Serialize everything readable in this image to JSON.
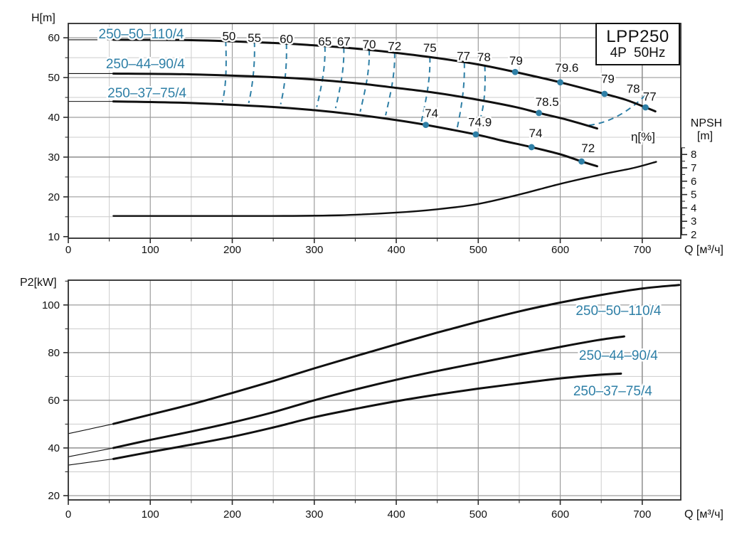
{
  "title_box": {
    "line1": "LPP250",
    "line2": "4P  50Hz"
  },
  "colors": {
    "accent": "#2e7fa6",
    "curve": "#101010",
    "grid_minor": "#cccccc",
    "grid_major": "#9d9d9d",
    "grid_emph": "#8a8a8a",
    "frame": "#2b2b2b",
    "text": "#111111"
  },
  "chart_data": [
    {
      "id": "head-flow-chart",
      "type": "line",
      "title": "",
      "ylabel": "H[m]",
      "xlabel": "Q [м³/ч]",
      "xlim": [
        0,
        747
      ],
      "ylim": [
        9.6,
        63.6
      ],
      "x_tick_labels": [
        0,
        100,
        200,
        300,
        400,
        500,
        600,
        700
      ],
      "x_minor_step": 50,
      "y_tick_labels": [
        10,
        20,
        30,
        40,
        50,
        60
      ],
      "y_minor_step": 5,
      "emphasis": {
        "x": 700,
        "y": 30
      },
      "series": [
        {
          "name": "250–50–110/4",
          "label_pos": [
            89,
            60.9
          ],
          "thin": [
            [
              0,
              59.5
            ],
            [
              55,
              59.5
            ]
          ],
          "points": [
            [
              55,
              59.5
            ],
            [
              150,
              59.4
            ],
            [
              250,
              58.7
            ],
            [
              300,
              58.1
            ],
            [
              350,
              57.3
            ],
            [
              400,
              56.2
            ],
            [
              450,
              54.9
            ],
            [
              500,
              53.3
            ],
            [
              545,
              51.4
            ],
            [
              600,
              48.8
            ],
            [
              654,
              45.9
            ],
            [
              680,
              44.4
            ],
            [
              704,
              42.5
            ],
            [
              716,
              41.5
            ]
          ]
        },
        {
          "name": "250–44–90/4",
          "label_pos": [
            94,
            53.4
          ],
          "thin": [
            [
              0,
              51.0
            ],
            [
              55,
              51.0
            ]
          ],
          "points": [
            [
              55,
              51.0
            ],
            [
              150,
              50.8
            ],
            [
              250,
              50.1
            ],
            [
              300,
              49.5
            ],
            [
              350,
              48.6
            ],
            [
              400,
              47.4
            ],
            [
              450,
              46.1
            ],
            [
              500,
              44.4
            ],
            [
              545,
              42.6
            ],
            [
              574,
              41.1
            ],
            [
              610,
              39.3
            ],
            [
              645,
              37.2
            ]
          ]
        },
        {
          "name": "250–37–75/4",
          "label_pos": [
            96,
            46.1
          ],
          "thin": [
            [
              0,
              44.0
            ],
            [
              55,
              44.0
            ]
          ],
          "points": [
            [
              55,
              44.0
            ],
            [
              150,
              43.6
            ],
            [
              250,
              42.6
            ],
            [
              300,
              41.8
            ],
            [
              350,
              40.7
            ],
            [
              400,
              39.3
            ],
            [
              436,
              38.1
            ],
            [
              497,
              35.7
            ],
            [
              530,
              34.1
            ],
            [
              565,
              32.5
            ],
            [
              600,
              30.7
            ],
            [
              626,
              28.9
            ],
            [
              645,
              27.7
            ]
          ]
        },
        {
          "name": "NPSH",
          "axis": "npsh",
          "points": [
            [
              55,
              3.4
            ],
            [
              150,
              3.4
            ],
            [
              250,
              3.4
            ],
            [
              330,
              3.45
            ],
            [
              400,
              3.65
            ],
            [
              450,
              3.9
            ],
            [
              500,
              4.3
            ],
            [
              550,
              5.0
            ],
            [
              600,
              5.8
            ],
            [
              650,
              6.5
            ],
            [
              690,
              7.0
            ],
            [
              717,
              7.45
            ]
          ]
        }
      ],
      "npsh_axis": {
        "title": "NPSH",
        "unit": "[m]",
        "ticks": [
          2,
          3,
          4,
          5,
          6,
          7,
          8
        ],
        "lim": [
          2,
          8.5
        ]
      },
      "eta_label": {
        "text": "η[%]",
        "pos": [
          701,
          35.2
        ]
      },
      "contours": [
        {
          "label": "50",
          "label_pos": [
            196,
            60.5
          ],
          "x1": 192,
          "y1": 59.3,
          "x2": 188,
          "y2": 43.9
        },
        {
          "label": "55",
          "label_pos": [
            227,
            60.0
          ],
          "x1": 227,
          "y1": 59.1,
          "x2": 220,
          "y2": 43.6
        },
        {
          "label": "60",
          "label_pos": [
            266,
            59.8
          ],
          "x1": 266,
          "y1": 58.6,
          "x2": 259,
          "y2": 43.3
        },
        {
          "label": "65",
          "label_pos": [
            313,
            59.1
          ],
          "x1": 313,
          "y1": 57.9,
          "x2": 303,
          "y2": 42.6
        },
        {
          "label": "67",
          "label_pos": [
            336,
            59.1
          ],
          "x1": 336,
          "y1": 57.6,
          "x2": 326,
          "y2": 42.3
        },
        {
          "label": "70",
          "label_pos": [
            367,
            58.4
          ],
          "x1": 367,
          "y1": 57.0,
          "x2": 356,
          "y2": 41.4
        },
        {
          "label": "72",
          "label_pos": [
            398,
            58.0
          ],
          "x1": 398,
          "y1": 56.3,
          "x2": 387,
          "y2": 40.5
        },
        {
          "label": "75",
          "label_pos": [
            441,
            57.5
          ],
          "x1": 441,
          "y1": 55.2,
          "x2": 430,
          "y2": 38.3
        },
        {
          "label": "77",
          "label_pos": [
            482,
            55.5
          ],
          "x1": 483,
          "y1": 53.8,
          "x2": 474,
          "y2": 37.0
        },
        {
          "label": "78",
          "label_pos": [
            507,
            55.2
          ],
          "x1": 508,
          "y1": 53.0,
          "x2": 503,
          "y2": 40.0
        },
        {
          "label": "",
          "label_pos": [
            0,
            0
          ],
          "x1": 635,
          "y1": 38.0,
          "x2": 708,
          "y2": 46.4,
          "branch": "right"
        }
      ],
      "dot_labels": [
        {
          "text": "79",
          "pos": [
            546,
            54.3
          ]
        },
        {
          "text": "79.6",
          "pos": [
            608,
            52.5
          ]
        },
        {
          "text": "79",
          "pos": [
            658,
            49.7
          ]
        },
        {
          "text": "78",
          "pos": [
            689,
            47.2
          ]
        },
        {
          "text": "77",
          "pos": [
            709,
            45.3
          ]
        },
        {
          "text": "78.5",
          "pos": [
            584,
            43.9
          ]
        },
        {
          "text": "74",
          "pos": [
            443,
            41.1
          ]
        },
        {
          "text": "74.9",
          "pos": [
            502,
            38.8
          ]
        },
        {
          "text": "74",
          "pos": [
            570,
            36.1
          ]
        },
        {
          "text": "72",
          "pos": [
            634,
            32.3
          ]
        }
      ],
      "dots": [
        [
          545,
          51.4
        ],
        [
          600,
          48.8
        ],
        [
          654,
          45.9
        ],
        [
          704,
          42.5
        ],
        [
          574,
          41.1
        ],
        [
          436,
          38.1
        ],
        [
          497,
          35.7
        ],
        [
          565,
          32.5
        ],
        [
          626,
          28.9
        ]
      ]
    },
    {
      "id": "power-flow-chart",
      "type": "line",
      "title": "",
      "ylabel": "P2[kW]",
      "xlabel": "Q [м³/ч]",
      "xlim": [
        0,
        747
      ],
      "ylim": [
        18.2,
        110.4
      ],
      "x_tick_labels": [
        0,
        100,
        200,
        300,
        400,
        500,
        600,
        700
      ],
      "x_minor_step": 50,
      "y_tick_labels": [
        20,
        40,
        60,
        80,
        100
      ],
      "y_minor_step": 10,
      "emphasis": {
        "x": 700,
        "y": 40
      },
      "series": [
        {
          "name": "250–50–110/4",
          "label_pos": [
            671,
            97.6
          ],
          "thin": [
            [
              0,
              46.0
            ],
            [
              55,
              50.1
            ]
          ],
          "points": [
            [
              55,
              50.1
            ],
            [
              100,
              54.0
            ],
            [
              150,
              58.3
            ],
            [
              200,
              63.1
            ],
            [
              250,
              68.1
            ],
            [
              300,
              73.4
            ],
            [
              350,
              78.5
            ],
            [
              400,
              83.5
            ],
            [
              450,
              88.4
            ],
            [
              500,
              93.0
            ],
            [
              550,
              97.3
            ],
            [
              600,
              101.0
            ],
            [
              650,
              104.2
            ],
            [
              700,
              106.9
            ],
            [
              745,
              108.4
            ]
          ]
        },
        {
          "name": "250–44–90/4",
          "label_pos": [
            671,
            78.8
          ],
          "thin": [
            [
              0,
              36.3
            ],
            [
              55,
              40.0
            ]
          ],
          "points": [
            [
              55,
              40.0
            ],
            [
              100,
              43.4
            ],
            [
              150,
              46.9
            ],
            [
              200,
              50.7
            ],
            [
              250,
              55.0
            ],
            [
              300,
              60.0
            ],
            [
              350,
              64.5
            ],
            [
              400,
              68.6
            ],
            [
              450,
              72.3
            ],
            [
              500,
              75.7
            ],
            [
              550,
              79.1
            ],
            [
              600,
              82.4
            ],
            [
              645,
              85.2
            ],
            [
              678,
              86.8
            ]
          ]
        },
        {
          "name": "250–37–75/4",
          "label_pos": [
            664,
            63.9
          ],
          "thin": [
            [
              0,
              32.8
            ],
            [
              55,
              35.4
            ]
          ],
          "points": [
            [
              55,
              35.4
            ],
            [
              100,
              38.3
            ],
            [
              150,
              41.4
            ],
            [
              200,
              44.7
            ],
            [
              250,
              48.6
            ],
            [
              300,
              52.9
            ],
            [
              350,
              56.4
            ],
            [
              400,
              59.6
            ],
            [
              450,
              62.4
            ],
            [
              500,
              64.9
            ],
            [
              550,
              67.1
            ],
            [
              600,
              69.2
            ],
            [
              640,
              70.5
            ],
            [
              674,
              71.2
            ]
          ]
        }
      ]
    }
  ]
}
